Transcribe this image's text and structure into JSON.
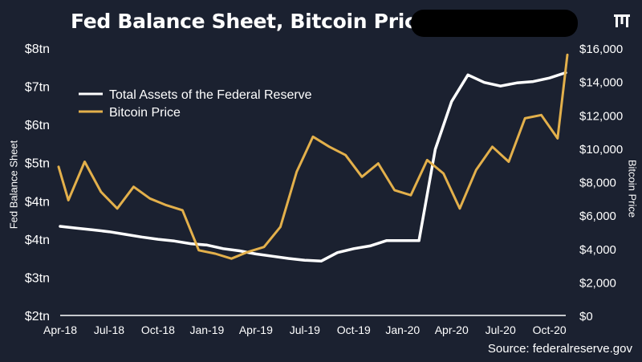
{
  "title": "Fed Balance Sheet, Bitcoin Price",
  "source": "Source: federalreserve.gov",
  "logo": "pantera-logo-icon",
  "colors": {
    "background": "#1b2130",
    "fed_line": "#ffffff",
    "btc_line": "#e3b04b",
    "text": "#ffffff"
  },
  "chart_data": {
    "type": "line",
    "title": "Fed Balance Sheet, Bitcoin Price",
    "xlabel": "",
    "x_ticks": [
      "Apr-18",
      "Jul-18",
      "Oct-18",
      "Jan-19",
      "Apr-19",
      "Jul-19",
      "Oct-19",
      "Jan-20",
      "Apr-20",
      "Jul-20",
      "Oct-20"
    ],
    "y_left": {
      "label": "Fed Balance Sheet",
      "ticks": [
        "$2tn",
        "$3tn",
        "$4tn",
        "$4tn",
        "$5tn",
        "$6tn",
        "$7tn",
        "$8tn"
      ],
      "range": [
        2,
        8
      ]
    },
    "y_right": {
      "label": "Bitcoin Price",
      "ticks": [
        "$0",
        "$2,000",
        "$4,000",
        "$6,000",
        "$8,000",
        "$10,000",
        "$12,000",
        "$14,000",
        "$16,000"
      ],
      "range": [
        0,
        16000
      ]
    },
    "legend": {
      "placement": "top-left"
    },
    "grid": false,
    "series": [
      {
        "name": "Total Assets of the Federal Reserve",
        "axis": "left",
        "color": "#ffffff",
        "x": [
          0,
          1,
          2,
          3,
          4,
          5,
          6,
          7,
          8,
          9,
          10,
          11,
          12,
          13,
          14,
          15,
          16,
          17,
          18,
          19,
          20,
          21,
          22,
          23,
          24,
          25,
          26,
          27,
          28,
          29,
          30,
          31
        ],
        "values": [
          4.0,
          3.96,
          3.92,
          3.88,
          3.82,
          3.76,
          3.71,
          3.67,
          3.61,
          3.58,
          3.5,
          3.45,
          3.38,
          3.33,
          3.28,
          3.24,
          3.22,
          3.41,
          3.5,
          3.56,
          3.68,
          3.68,
          3.68,
          5.73,
          6.8,
          7.4,
          7.23,
          7.15,
          7.22,
          7.25,
          7.33,
          7.45
        ]
      },
      {
        "name": "Bitcoin Price",
        "axis": "right",
        "color": "#e3b04b",
        "x": [
          -0.1,
          0.5,
          1.5,
          2.5,
          3.5,
          4.5,
          5.5,
          6.5,
          7.5,
          8.5,
          9.5,
          10.5,
          11.5,
          12.5,
          13.5,
          14.5,
          15.5,
          16.5,
          17.5,
          18.5,
          19.5,
          20.5,
          21.5,
          22.5,
          23.5,
          24.5,
          25.5,
          26.5,
          27.5,
          28.5,
          29.5,
          30.5,
          31.1
        ],
        "values": [
          8900,
          6900,
          9200,
          7400,
          6400,
          7700,
          7000,
          6600,
          6300,
          3900,
          3700,
          3400,
          3800,
          4100,
          5300,
          8600,
          10700,
          10100,
          9600,
          8300,
          9100,
          7500,
          7200,
          9300,
          8500,
          6400,
          8700,
          10100,
          9200,
          11800,
          12000,
          10600,
          15600
        ]
      }
    ]
  }
}
